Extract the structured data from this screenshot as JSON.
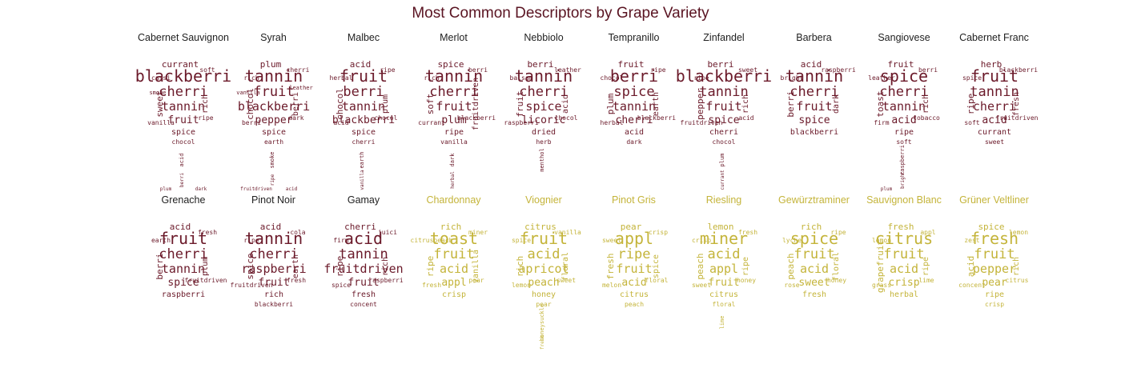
{
  "title": "Most Common Descriptors by Grape Variety",
  "colors": {
    "red": "#6b1a2a",
    "white": "#c4b43a"
  },
  "panels": [
    {
      "name": "Cabernet Sauvignon",
      "color": "red",
      "words": [
        "blackberri",
        "cherri",
        "tannin",
        "fruit",
        "currant",
        "sweet",
        "rich",
        "spice",
        "cassi",
        "soft",
        "ripe",
        "vanilla",
        "chocol",
        "acid",
        "berri",
        "plum",
        "dark",
        "smoke"
      ]
    },
    {
      "name": "Syrah",
      "color": "red",
      "words": [
        "tannin",
        "fruit",
        "blackberri",
        "pepper",
        "plum",
        "chocol",
        "berri",
        "spice",
        "rich",
        "cherri",
        "dark",
        "berri",
        "earth",
        "smoke",
        "ripe",
        "fruitdriven",
        "acid",
        "vanilla",
        "leather"
      ]
    },
    {
      "name": "Malbec",
      "color": "red",
      "words": [
        "fruit",
        "berri",
        "tannin",
        "blackberri",
        "acid",
        "chocol",
        "plum",
        "spice",
        "herbal",
        "ripe",
        "chocol",
        "acid",
        "cherri",
        "earth",
        "vanilla"
      ]
    },
    {
      "name": "Merlot",
      "color": "red",
      "words": [
        "tannin",
        "cherri",
        "fruit",
        "plum",
        "spice",
        "soft",
        "fruitdriven",
        "ripe",
        "rich",
        "berri",
        "blackberri",
        "currant",
        "vanilla",
        "dark",
        "herbal"
      ]
    },
    {
      "name": "Nebbiolo",
      "color": "red",
      "words": [
        "tannin",
        "cherri",
        "spice",
        "licoric",
        "berri",
        "fruit",
        "acid",
        "dried",
        "balsam",
        "leather",
        "chocol",
        "raspberri",
        "herb",
        "menthol"
      ]
    },
    {
      "name": "Tempranillo",
      "color": "red",
      "words": [
        "berri",
        "spice",
        "tannin",
        "cherri",
        "fruit",
        "plum",
        "earth",
        "acid",
        "chocol",
        "ripe",
        "blackberri",
        "herbal",
        "dark"
      ]
    },
    {
      "name": "Zinfandel",
      "color": "red",
      "words": [
        "blackberri",
        "tannin",
        "fruit",
        "spice",
        "berri",
        "pepper",
        "rich",
        "cherri",
        "ripe",
        "sweet",
        "acid",
        "fruitdriven",
        "chocol",
        "plum",
        "currant"
      ]
    },
    {
      "name": "Barbera",
      "color": "red",
      "words": [
        "tannin",
        "cherri",
        "fruit",
        "spice",
        "acid",
        "berri",
        "dark",
        "blackberri",
        "bright",
        "raspberri"
      ]
    },
    {
      "name": "Sangiovese",
      "color": "red",
      "words": [
        "spice",
        "cherri",
        "tannin",
        "acid",
        "fruit",
        "toast",
        "rich",
        "ripe",
        "leather",
        "berri",
        "tobacco",
        "firm",
        "soft",
        "raspberri",
        "bright",
        "plum"
      ]
    },
    {
      "name": "Cabernet Franc",
      "color": "red",
      "words": [
        "fruit",
        "tannin",
        "cherri",
        "acid",
        "herb",
        "ripe",
        "fresh",
        "currant",
        "spice",
        "blackberri",
        "fruitdriven",
        "soft",
        "sweet"
      ]
    },
    {
      "name": "Grenache",
      "color": "red",
      "words": [
        "fruit",
        "cherri",
        "tannin",
        "spice",
        "acid",
        "berri",
        "plum",
        "raspberri",
        "earth",
        "fresh",
        "fruitdriven"
      ]
    },
    {
      "name": "Pinot Noir",
      "color": "red",
      "words": [
        "tannin",
        "cherri",
        "raspberri",
        "fruit",
        "acid",
        "spice",
        "earth",
        "rich",
        "ripe",
        "cola",
        "fresh",
        "fruitdriven",
        "blackberri"
      ]
    },
    {
      "name": "Gamay",
      "color": "red",
      "words": [
        "acid",
        "tannin",
        "fruitdriven",
        "fruit",
        "cherri",
        "ripe",
        "rich",
        "fresh",
        "firm",
        "juici",
        "raspberri",
        "spice",
        "concent"
      ]
    },
    {
      "name": "Chardonnay",
      "color": "white",
      "words": [
        "toast",
        "fruit",
        "acid",
        "appl",
        "rich",
        "ripe",
        "vanilla",
        "crisp",
        "citruspeach",
        "miner",
        "pear",
        "fresh"
      ]
    },
    {
      "name": "Viognier",
      "color": "white",
      "words": [
        "fruit",
        "acid",
        "apricot",
        "peach",
        "citrus",
        "rich",
        "floral",
        "honey",
        "spice",
        "vanilla",
        "sweet",
        "lemon",
        "pear",
        "honeysuckle",
        "fresh"
      ]
    },
    {
      "name": "Pinot Gris",
      "color": "white",
      "words": [
        "appl",
        "ripe",
        "fruit",
        "acid",
        "pear",
        "fresh",
        "spice",
        "citrus",
        "sweet",
        "crisp",
        "floral",
        "melon",
        "peach"
      ]
    },
    {
      "name": "Riesling",
      "color": "white",
      "words": [
        "miner",
        "acid",
        "appl",
        "fruit",
        "lemon",
        "peach",
        "ripe",
        "citrus",
        "crisp",
        "fresh",
        "honey",
        "sweet",
        "floral",
        "lime"
      ]
    },
    {
      "name": "Gewürztraminer",
      "color": "white",
      "words": [
        "spice",
        "fruit",
        "acid",
        "sweet",
        "rich",
        "peach",
        "floral",
        "fresh",
        "lyche",
        "ripe",
        "honey",
        "rose"
      ]
    },
    {
      "name": "Sauvignon Blanc",
      "color": "white",
      "words": [
        "citrus",
        "fruit",
        "acid",
        "crisp",
        "fresh",
        "grapefruit",
        "ripe",
        "herbal",
        "lemon",
        "appl",
        "lime",
        "grass"
      ]
    },
    {
      "name": "Grüner Veltliner",
      "color": "white",
      "words": [
        "fresh",
        "fruit",
        "pepper",
        "pear",
        "spice",
        "acid",
        "rich",
        "ripe",
        "zest",
        "lemon",
        "citrus",
        "concent",
        "crisp"
      ]
    }
  ]
}
